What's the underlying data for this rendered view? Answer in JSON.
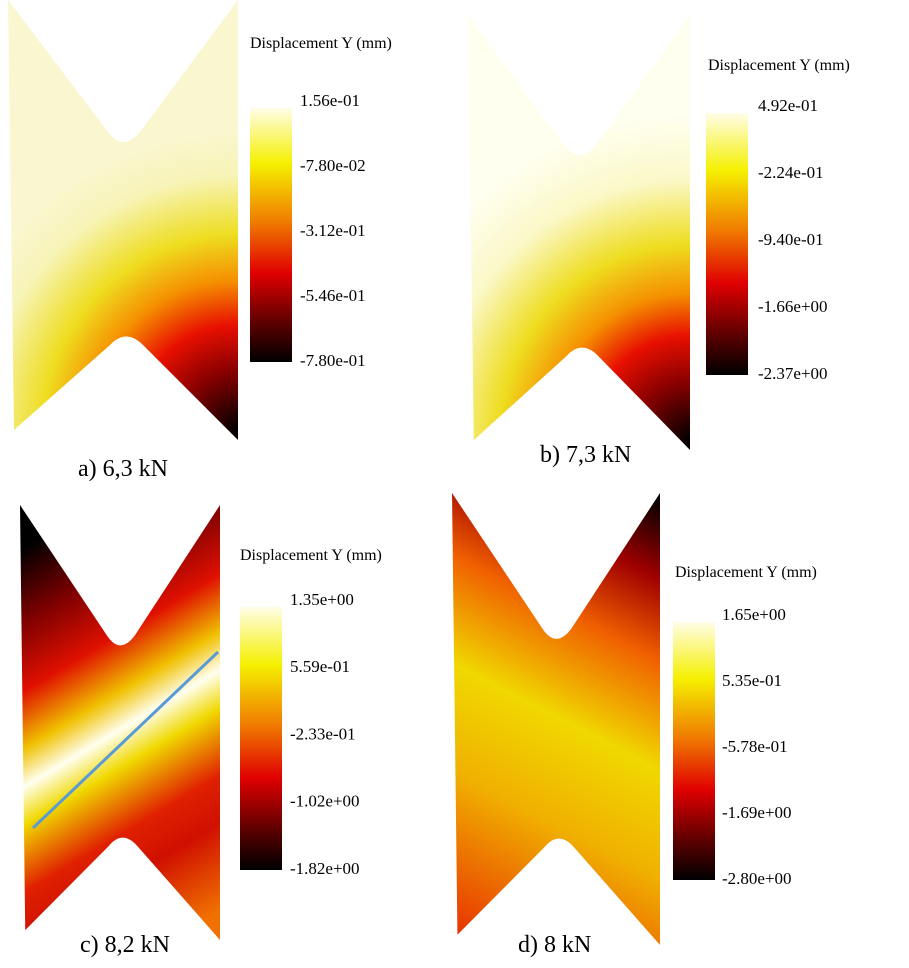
{
  "panels": [
    {
      "colorbar_title": "Displacement Y (mm)",
      "ticks": [
        "1.56e-01",
        "-7.80e-02",
        "-3.12e-01",
        "-5.46e-01",
        "-7.80e-01"
      ],
      "caption": "a) 6,3 kN"
    },
    {
      "colorbar_title": "Displacement Y (mm)",
      "ticks": [
        "4.92e-01",
        "-2.24e-01",
        "-9.40e-01",
        "-1.66e+00",
        "-2.37e+00"
      ],
      "caption": "b) 7,3 kN"
    },
    {
      "colorbar_title": "Displacement Y (mm)",
      "ticks": [
        "1.35e+00",
        "5.59e-01",
        "-2.33e-01",
        "-1.02e+00",
        "-1.82e+00"
      ],
      "caption": "c) 8,2 kN"
    },
    {
      "colorbar_title": "Displacement Y (mm)",
      "ticks": [
        "1.65e+00",
        "5.35e-01",
        "-5.78e-01",
        "-1.69e+00",
        "-2.80e+00"
      ],
      "caption": "d) 8 kN"
    }
  ]
}
